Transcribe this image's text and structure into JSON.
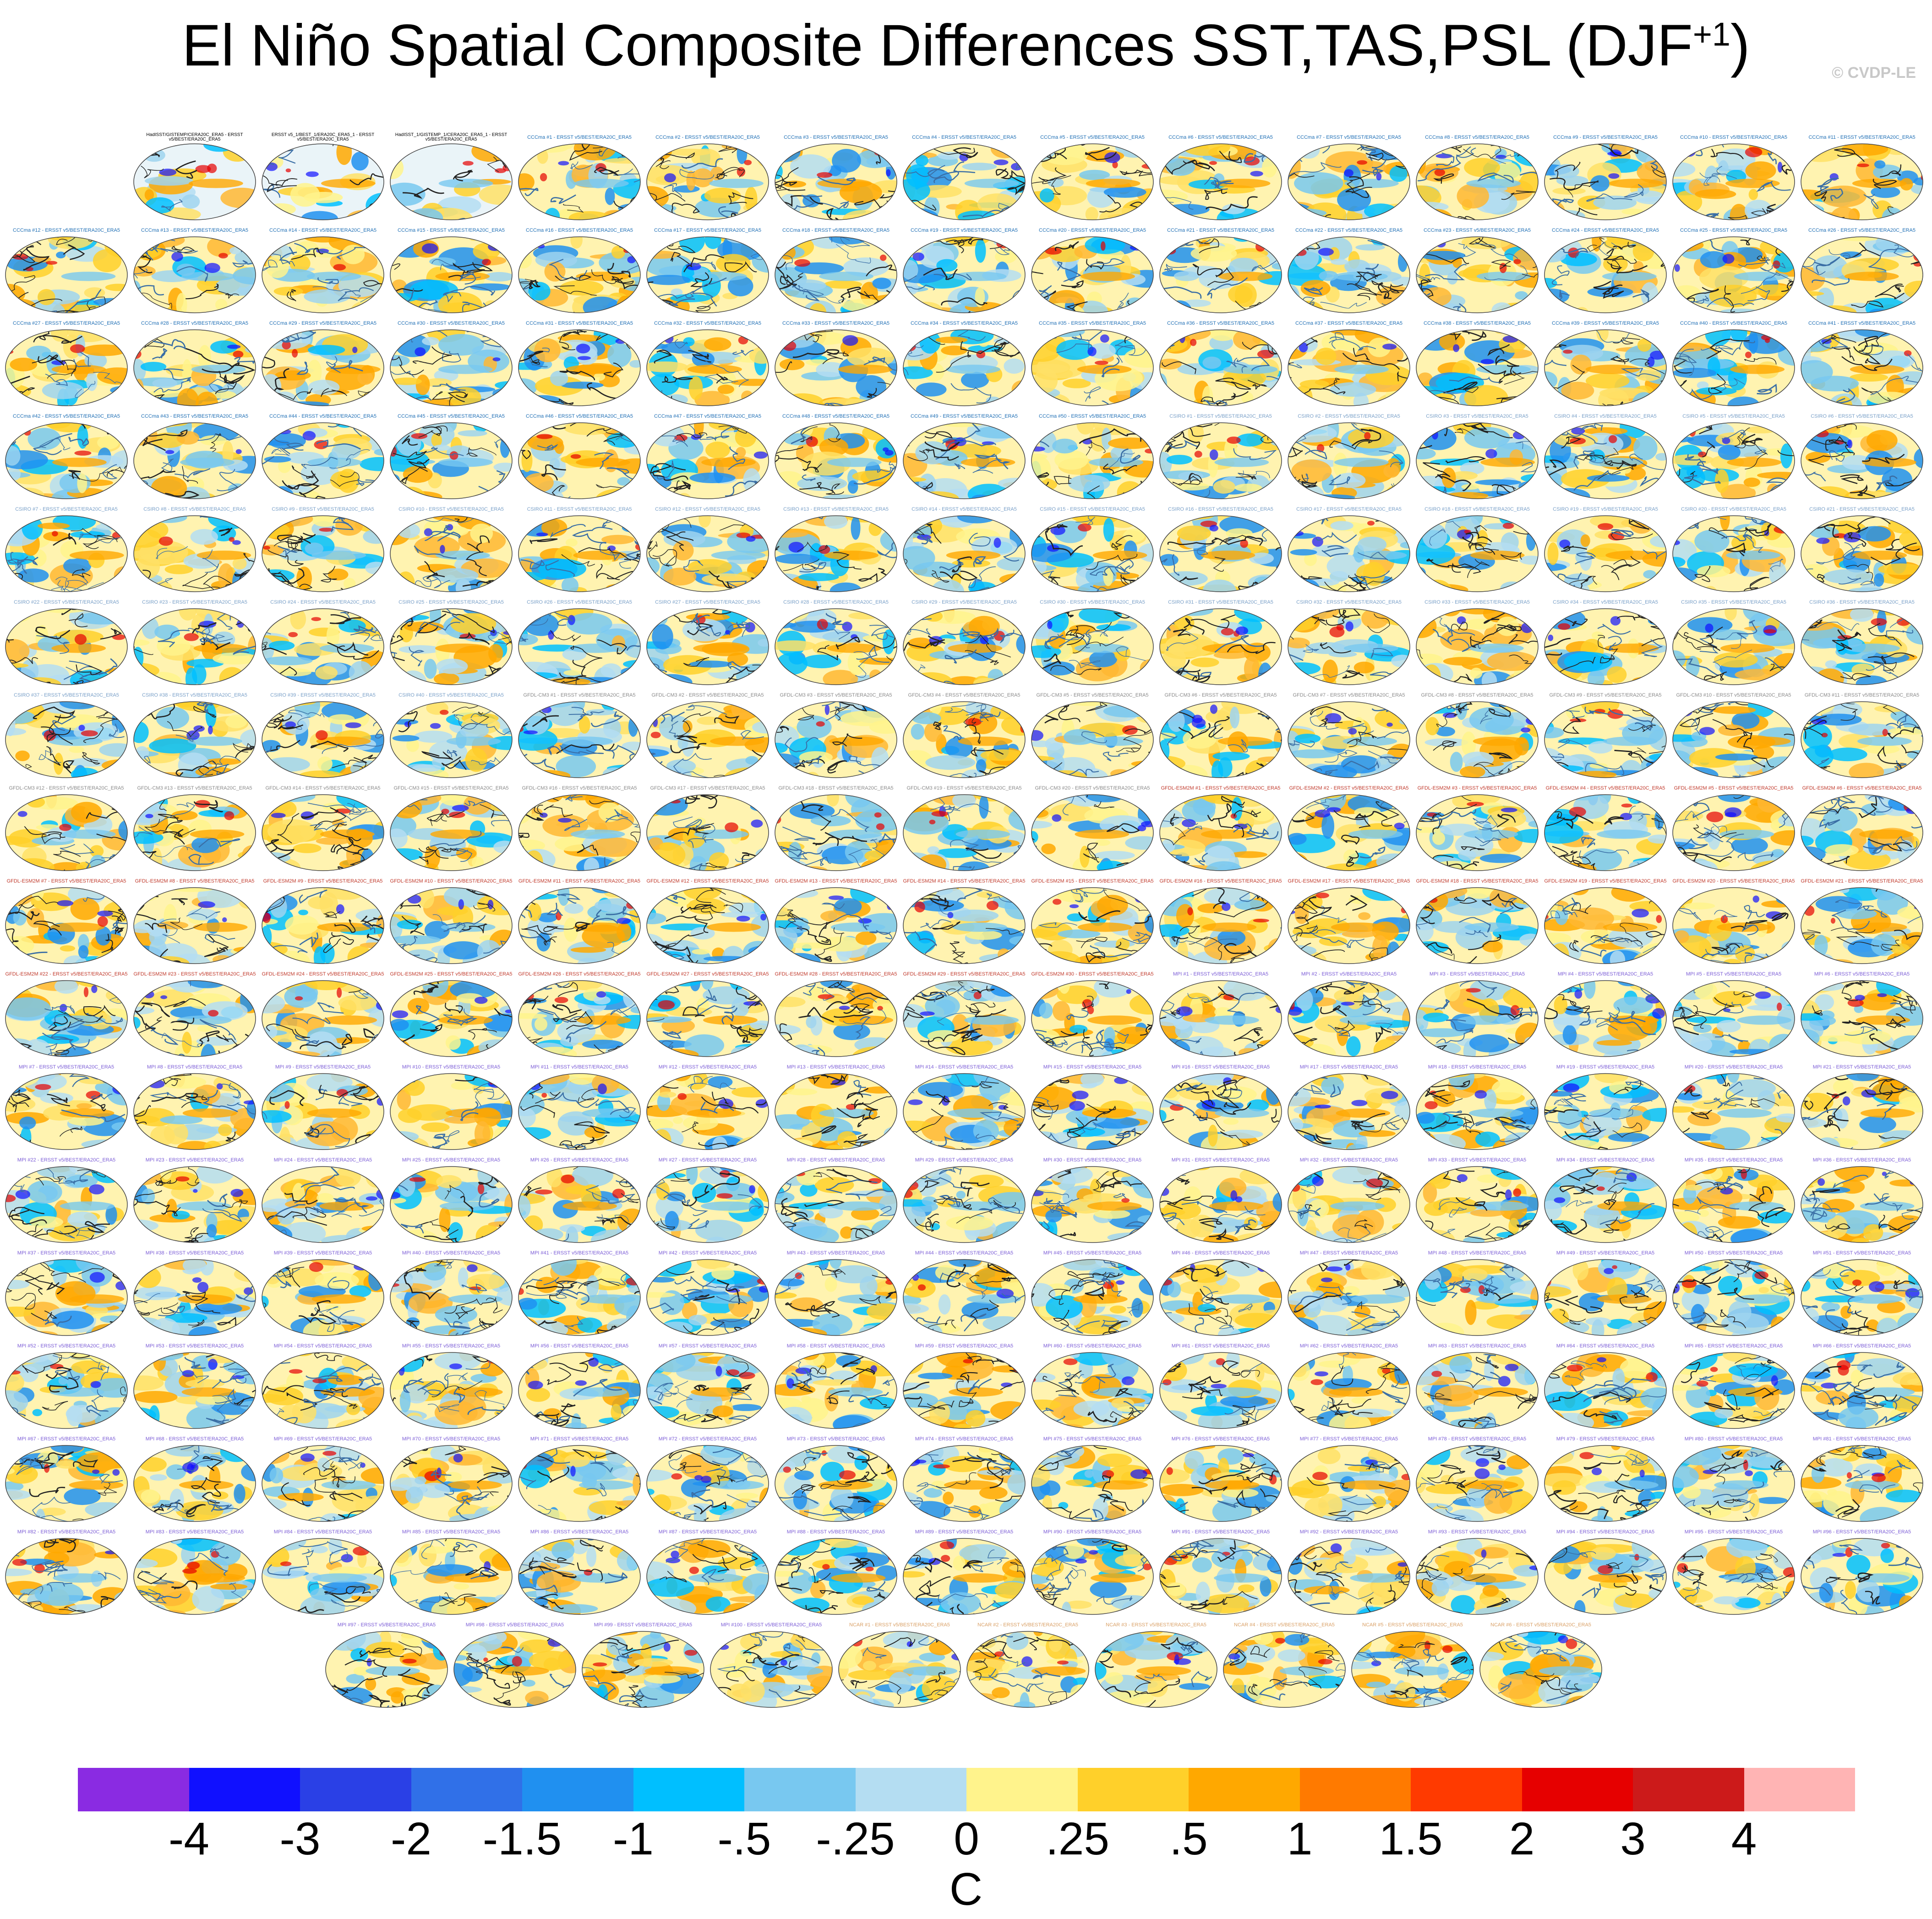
{
  "title": {
    "main": "El Niño Spatial Composite Differences SST,TAS,PSL (DJF",
    "superscript": "+1",
    "close": ")"
  },
  "copyright": "© CVDP-LE",
  "panels": {
    "observations": [
      {
        "label": "HadISST/GISTEMP/CERA20C_ERA5 - ERSST v5/BEST/ERA20C_ERA5",
        "color": "#000000"
      },
      {
        "label": "ERSST v5_1/BEST_1/ERA20C_ERA5_1 - ERSST v5/BEST/ERA20C_ERA5",
        "color": "#000000"
      },
      {
        "label": "HadISST_1/GISTEMP_1/CERA20C_ERA5_1 - ERSST v5/BEST/ERA20C_ERA5",
        "color": "#000000"
      }
    ],
    "label_suffix": " - ERSST v5/BEST/ERA20C_ERA5",
    "models": [
      {
        "name": "CCCma",
        "count": 50,
        "color": "#1f6fb5"
      },
      {
        "name": "CSIRO",
        "count": 40,
        "color": "#7aa0c8"
      },
      {
        "name": "GFDL-CM3",
        "count": 20,
        "color": "#8a8a8a"
      },
      {
        "name": "GFDL-ESM2M",
        "count": 30,
        "color": "#c0392b"
      },
      {
        "name": "MPI",
        "count": 100,
        "color": "#7b5cd6"
      },
      {
        "name": "NCAR",
        "count": 40,
        "color": "#d9a066"
      },
      {
        "name": "SMHI_KNMI",
        "count": 16,
        "color": "#4a7ab0"
      }
    ]
  },
  "colorbar": {
    "colors": [
      "#8a2be2",
      "#1010ff",
      "#2a40e6",
      "#3070e8",
      "#2090f0",
      "#00bfff",
      "#78c8f0",
      "#b4ddf2",
      "#fff38c",
      "#ffd02a",
      "#ffa800",
      "#ff7a00",
      "#ff3a00",
      "#e60000",
      "#cc1a1a",
      "#ffb4b4"
    ],
    "tick_labels": [
      "-4",
      "-3",
      "-2",
      "-1.5",
      "-1",
      "-.5",
      "-.25",
      "0",
      ".25",
      ".5",
      "1",
      "1.5",
      "2",
      "3",
      "4"
    ],
    "units": "C"
  }
}
